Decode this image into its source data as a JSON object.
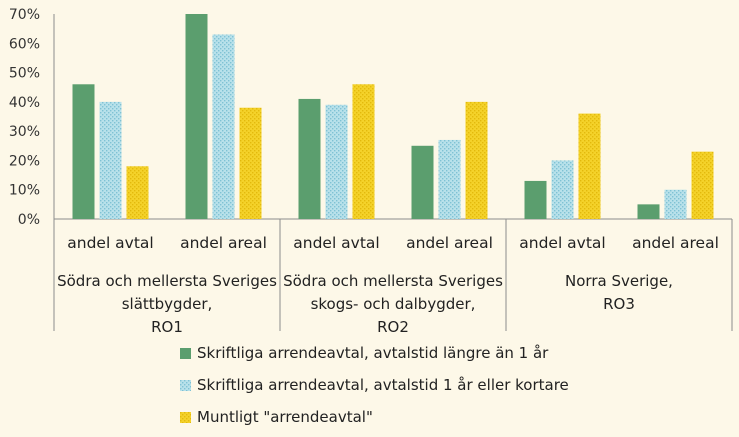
{
  "chart_data": {
    "type": "bar",
    "ylim": [
      0,
      70
    ],
    "ytick_step": 10,
    "ytick_labels": [
      "0%",
      "10%",
      "20%",
      "30%",
      "40%",
      "50%",
      "60%",
      "70%"
    ],
    "grid": false,
    "legend_position": "bottom",
    "groups": [
      {
        "label": "Södra och mellersta Sveriges slättbygder, RO1",
        "lines": [
          "Södra och mellersta Sveriges",
          "slättbygder,",
          "RO1"
        ]
      },
      {
        "label": "Södra och mellersta Sveriges skogs- och dalbygder, RO2",
        "lines": [
          "Södra och mellersta Sveriges",
          "skogs- och dalbygder,",
          "RO2"
        ]
      },
      {
        "label": "Norra Sverige, RO3",
        "lines": [
          "Norra Sverige,",
          "RO3"
        ]
      }
    ],
    "categories": [
      "andel avtal",
      "andel areal",
      "andel avtal",
      "andel areal",
      "andel avtal",
      "andel areal"
    ],
    "series": [
      {
        "name": "Skriftliga arrendeavtal, avtalstid längre än 1 år",
        "color": "#5b9e6e",
        "pattern": "solid",
        "values": [
          46,
          70,
          41,
          25,
          13,
          5
        ]
      },
      {
        "name": "Skriftliga arrendeavtal, avtalstid 1 år eller kortare",
        "color": "#a9d8e3",
        "pattern": "dotted",
        "values": [
          40,
          63,
          39,
          27,
          20,
          10
        ]
      },
      {
        "name": "Muntligt \"arrendeavtal\"",
        "color": "#f2cc1c",
        "pattern": "dotted",
        "values": [
          18,
          38,
          46,
          40,
          36,
          23
        ]
      }
    ]
  }
}
